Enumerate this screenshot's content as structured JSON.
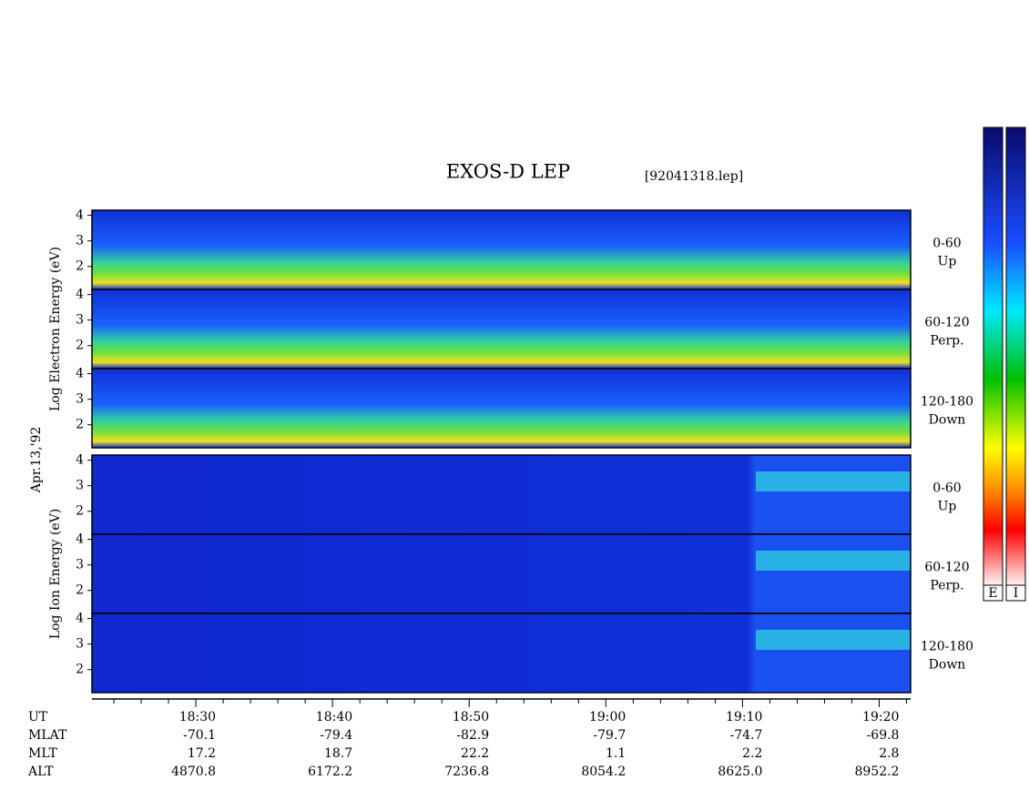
{
  "title": "EXOS-D LEP",
  "file_name": "[92041318.lep]",
  "date": "Apr.13,'92",
  "colorbar_labels": [
    "E",
    "I"
  ],
  "xlim": [
    1102.4,
    1162.3
  ],
  "xticks": [
    {
      "value": 1110,
      "label": "18:30"
    },
    {
      "value": 1120,
      "label": "18:40"
    },
    {
      "value": 1130,
      "label": "18:50"
    },
    {
      "value": 1140,
      "label": "19:00"
    },
    {
      "value": 1150,
      "label": "19:10"
    },
    {
      "value": 1160,
      "label": "19:20"
    }
  ],
  "minor_xticks": [
    1104,
    1106,
    1108,
    1112,
    1114,
    1116,
    1118,
    1122,
    1124,
    1126,
    1128,
    1132,
    1134,
    1136,
    1138,
    1142,
    1144,
    1146,
    1148,
    1152,
    1154,
    1156,
    1158,
    1162
  ],
  "ylim": [
    1.1,
    4.2
  ],
  "yticks": [
    2,
    3,
    4
  ],
  "groups": [
    {
      "label": "Log Electron Energy (eV)",
      "panels": [
        {
          "right_label": [
            "0-60",
            "Up"
          ]
        },
        {
          "right_label": [
            "60-120",
            "Perp."
          ]
        },
        {
          "right_label": [
            "120-180",
            "Down"
          ]
        }
      ]
    },
    {
      "label": "Log Ion Energy (eV)",
      "panels": [
        {
          "right_label": [
            "0-60",
            "Up"
          ]
        },
        {
          "right_label": [
            "60-120",
            "Perp."
          ]
        },
        {
          "right_label": [
            "120-180",
            "Down"
          ]
        }
      ]
    }
  ],
  "row_labels": [
    "UT",
    "MLAT",
    "MLT",
    "ALT"
  ],
  "ephemeris": [
    [
      "-70.1",
      "-79.4",
      "-82.9",
      "-79.7",
      "-74.7",
      "-69.8"
    ],
    [
      "17.2",
      "18.7",
      "22.2",
      "1.1",
      "2.2",
      "2.8"
    ],
    [
      "4870.8",
      "6172.2",
      "7236.8",
      "8054.2",
      "8625.0",
      "8952.2"
    ]
  ]
}
